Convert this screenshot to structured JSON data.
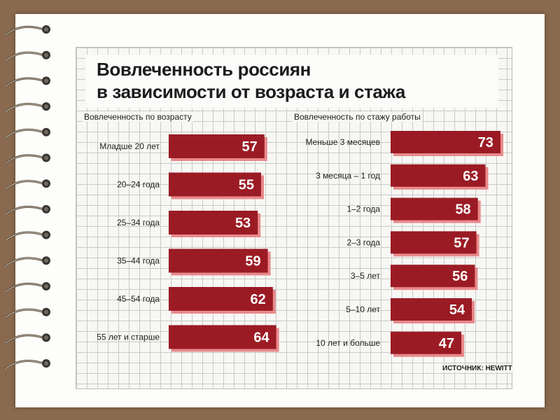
{
  "title": [
    "Вовлеченность россиян",
    "в зависимости от возраста и стажа"
  ],
  "source": "ИСТОЧНИК: HEWITT",
  "colors": {
    "bar": "#9b1b24",
    "bar_shadow": "#e8898b",
    "background": "#8a6a4e",
    "grid": "#c9c9c9"
  },
  "chart_data": [
    {
      "type": "bar",
      "orientation": "horizontal",
      "title": "Вовлеченность по возрасту",
      "categories": [
        "Младше 20 лет",
        "20–24 года",
        "25–34 года",
        "35–44 года",
        "45–54 года",
        "55 лет и старше"
      ],
      "values": [
        57,
        55,
        53,
        59,
        62,
        64
      ],
      "data_labels": true
    },
    {
      "type": "bar",
      "orientation": "horizontal",
      "title": "Вовлеченность по стажу работы",
      "categories": [
        "Меньше 3 месяцев",
        "3 месяца – 1 год",
        "1–2 года",
        "2–3 года",
        "3–5 лет",
        "5–10 лет",
        "10 лет и больше"
      ],
      "values": [
        73,
        63,
        58,
        57,
        56,
        54,
        47
      ],
      "data_labels": true
    }
  ]
}
